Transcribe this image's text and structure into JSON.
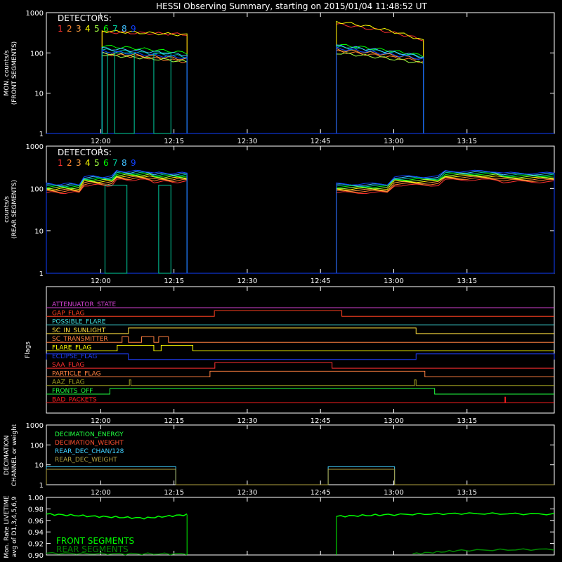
{
  "title": "HESSI Observing Summary, starting on 2015/01/04 11:48:52 UT",
  "time_axis": {
    "labels": [
      "12:00",
      "12:15",
      "12:30",
      "12:45",
      "13:00",
      "13:15"
    ],
    "label_minutes": [
      11.13,
      26.13,
      41.13,
      56.13,
      71.13,
      86.13
    ],
    "range_minutes": [
      0,
      104
    ]
  },
  "colors": {
    "frame": "#ffffff",
    "det": [
      "#ff3030",
      "#ff7f2a",
      "#ff9f40",
      "#ffff00",
      "#a0ff40",
      "#00ff00",
      "#00d0a0",
      "#40c0ff",
      "#1040ff"
    ],
    "front_label": "#00ff00",
    "rear_label": "#008800"
  },
  "panels": {
    "front": {
      "ylabel": [
        "MON. counts/s",
        "(FRONT SEGMENTS)"
      ],
      "yticks": [
        "1",
        "10",
        "100",
        "1000"
      ],
      "legend_title": "DETECTORS:",
      "detectors": [
        "1",
        "2",
        "3",
        "4",
        "5",
        "6",
        "7",
        "8",
        "9"
      ]
    },
    "rear": {
      "ylabel": [
        "counts/s",
        "(REAR SEGMENTS)"
      ],
      "yticks": [
        "1",
        "10",
        "100",
        "1000"
      ],
      "legend_title": "DETECTORS:",
      "detectors": [
        "1",
        "2",
        "3",
        "4",
        "5",
        "6",
        "7",
        "8",
        "9"
      ]
    },
    "flags": {
      "ylabel": "Flags",
      "items": [
        {
          "name": "ATTENUATOR_STATE",
          "color": "#d040d0"
        },
        {
          "name": "GAP_FLAG",
          "color": "#ff4020"
        },
        {
          "name": "POSSIBLE_FLARE",
          "color": "#40e0e0"
        },
        {
          "name": "SC_IN_SUNLIGHT",
          "color": "#ffe040"
        },
        {
          "name": "SC_TRANSMITTER",
          "color": "#ff8040"
        },
        {
          "name": "FLARE_FLAG",
          "color": "#ffff00"
        },
        {
          "name": "ECLIPSE_FLAG",
          "color": "#2040ff"
        },
        {
          "name": "SAA_FLAG",
          "color": "#ff3030"
        },
        {
          "name": "PARTICLE_FLAG",
          "color": "#ff8040"
        },
        {
          "name": "AAZ_FLAG",
          "color": "#a0a020"
        },
        {
          "name": "FRONTS_OFF",
          "color": "#20ff40"
        },
        {
          "name": "BAD_PACKETS",
          "color": "#ff2020"
        }
      ]
    },
    "decimation": {
      "ylabel": [
        "DECIMATION",
        "CHANNEL or weight"
      ],
      "yticks": [
        "1",
        "10",
        "100",
        "1000"
      ],
      "series": [
        {
          "name": "DECIMATION_ENERGY",
          "color": "#20ff40"
        },
        {
          "name": "DECIMATION_WEIGHT",
          "color": "#ff5030"
        },
        {
          "name": "REAR_DEC_CHAN/128",
          "color": "#40d0ff"
        },
        {
          "name": "REAR_DEC_WEIGHT",
          "color": "#b0a040"
        }
      ]
    },
    "livetime": {
      "ylabel": [
        "Mon. Rate LIVETIME",
        "avg of D1,3,4,5,6,9"
      ],
      "yticks": [
        "0.90",
        "0.92",
        "0.94",
        "0.96",
        "0.98",
        "1.00"
      ],
      "ylim": [
        0.9,
        1.0
      ],
      "front_label": "FRONT SEGMENTS",
      "rear_label": "REAR SEGMENTS"
    }
  },
  "chart_data": {
    "type": "line",
    "x_unit": "minutes after 11:48:52 UT",
    "front_counts": {
      "yscale": "log",
      "ylim": [
        1,
        1000
      ],
      "intervals": [
        {
          "on": 11.4,
          "off": 28.8,
          "det4_level": [
            350,
            280
          ]
        },
        {
          "on": 59.4,
          "off": 77.2,
          "det4_level": [
            600,
            200
          ]
        }
      ],
      "det_levels": [
        {
          "detector": "1",
          "first": [
            330,
            290
          ],
          "second": [
            520,
            210
          ]
        },
        {
          "detector": "2",
          "first": [
            95,
            60
          ],
          "second": [
            110,
            60
          ]
        },
        {
          "detector": "3",
          "first": [
            100,
            70
          ],
          "second": [
            120,
            70
          ]
        },
        {
          "detector": "4",
          "first": [
            350,
            280
          ],
          "second": [
            600,
            200
          ]
        },
        {
          "detector": "5",
          "first": [
            90,
            60
          ],
          "second": [
            100,
            55
          ]
        },
        {
          "detector": "6",
          "first": [
            150,
            100
          ],
          "second": [
            160,
            85
          ]
        },
        {
          "detector": "7",
          "first": [
            120,
            80
          ],
          "second": [
            140,
            80
          ]
        },
        {
          "detector": "8",
          "first": [
            130,
            90
          ],
          "second": [
            150,
            80
          ]
        },
        {
          "detector": "9",
          "first": [
            110,
            75
          ],
          "second": [
            130,
            70
          ]
        }
      ],
      "det7_dropouts": [
        [
          11.4,
          12.5
        ],
        [
          14.0,
          18.0
        ],
        [
          22.0,
          25.5
        ]
      ]
    },
    "rear_counts": {
      "yscale": "log",
      "ylim": [
        1,
        1000
      ],
      "intervals": [
        [
          0,
          28.8
        ],
        [
          59.4,
          104
        ]
      ],
      "typical_levels": [
        100,
        150,
        200,
        180
      ],
      "det7_dropouts": [
        [
          12.0,
          16.5
        ],
        [
          23.0,
          25.5
        ]
      ]
    },
    "flags": [
      {
        "name": "ATTENUATOR_STATE",
        "segments": []
      },
      {
        "name": "GAP_FLAG",
        "segments": [
          [
            34.4,
            60.5
          ]
        ]
      },
      {
        "name": "POSSIBLE_FLARE",
        "segments": []
      },
      {
        "name": "SC_IN_SUNLIGHT",
        "segments": [
          [
            16.8,
            75.7
          ]
        ]
      },
      {
        "name": "SC_TRANSMITTER",
        "segments": [
          [
            15.5,
            16.8
          ],
          [
            19.5,
            22.0
          ],
          [
            23.0,
            25.0
          ]
        ]
      },
      {
        "name": "FLARE_FLAG",
        "segments": [
          [
            14.5,
            22.0
          ],
          [
            23.5,
            30.0
          ]
        ]
      },
      {
        "name": "ECLIPSE_FLAG",
        "segments": [
          [
            0,
            16.8
          ],
          [
            75.7,
            104
          ]
        ]
      },
      {
        "name": "SAA_FLAG",
        "segments": [
          [
            34.5,
            58.5
          ]
        ]
      },
      {
        "name": "PARTICLE_FLAG",
        "segments": [
          [
            33.5,
            77.5
          ]
        ]
      },
      {
        "name": "AAZ_FLAG",
        "segments": [
          [
            17.0,
            17.3
          ],
          [
            75.4,
            75.7
          ]
        ]
      },
      {
        "name": "FRONTS_OFF",
        "segments": [
          [
            13.0,
            79.5
          ]
        ]
      },
      {
        "name": "BAD_PACKETS",
        "segments": [
          [
            93.9,
            94.0
          ]
        ]
      }
    ],
    "decimation": {
      "yscale": "log",
      "ylim": [
        1,
        1000
      ],
      "rear_dec_chan_level": 8,
      "rear_dec_weight_level": 6,
      "active_intervals": [
        [
          0,
          26.5
        ],
        [
          57.7,
          71.3
        ]
      ]
    },
    "livetime": {
      "ylim": [
        0.9,
        1.0
      ],
      "front": [
        {
          "x": [
            0,
            10,
            20,
            28.8
          ],
          "y": [
            0.971,
            0.967,
            0.964,
            0.97
          ]
        },
        {
          "x": [
            59.4,
            70,
            85,
            104
          ],
          "y": [
            0.967,
            0.97,
            0.972,
            0.971
          ]
        }
      ],
      "rear": [
        {
          "x": [
            0,
            15,
            28.8
          ],
          "y": [
            0.903,
            0.902,
            0.902
          ]
        },
        {
          "x": [
            75,
            85,
            104
          ],
          "y": [
            0.902,
            0.908,
            0.91
          ]
        }
      ]
    }
  }
}
